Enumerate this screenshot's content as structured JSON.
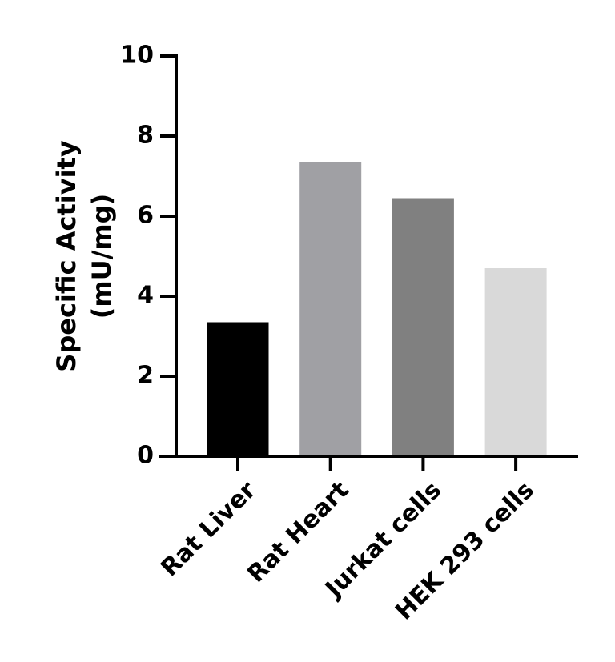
{
  "chart_data": {
    "type": "bar",
    "ylabel": [
      "Specific Activity",
      "(mU/mg)"
    ],
    "categories": [
      "Rat Liver",
      "Rat Heart",
      "Jurkat cells",
      "HEK 293 cells"
    ],
    "values": [
      3.35,
      7.35,
      6.45,
      4.7
    ],
    "colors": [
      "#000000",
      "#a0a0a4",
      "#808080",
      "#d9d9d9"
    ],
    "ylim": [
      0,
      10
    ],
    "yticks": [
      0,
      2,
      4,
      6,
      8,
      10
    ]
  }
}
